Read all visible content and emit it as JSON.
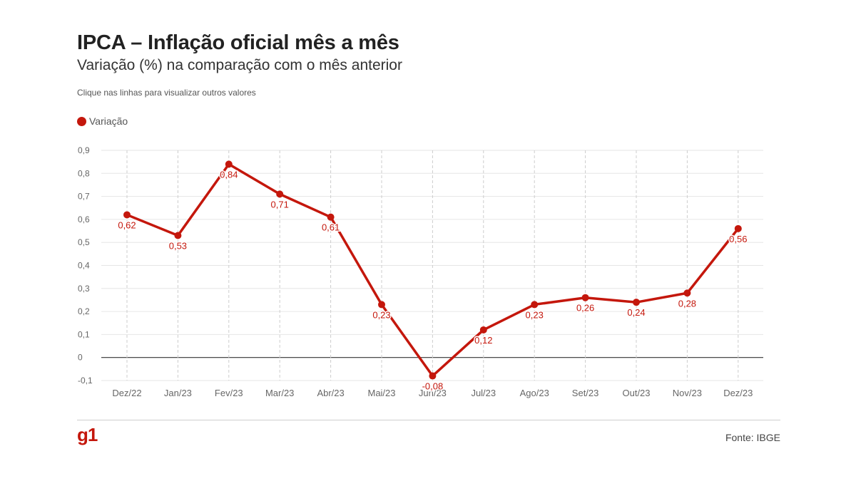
{
  "header": {
    "title": "IPCA – Inflação oficial mês a mês",
    "subtitle": "Variação (%) na comparação com o mês anterior",
    "hint": "Clique nas linhas para visualizar outros valores"
  },
  "footer": {
    "logo": "g1",
    "source": "Fonte: IBGE"
  },
  "colors": {
    "series": "#c4170c",
    "logo": "#c4170c",
    "grid": "#e6e6e6",
    "vgrid": "#cccccc",
    "zero_line": "#333333",
    "tick_text": "#666666"
  },
  "chart_data": {
    "type": "line",
    "title": "IPCA – Inflação oficial mês a mês",
    "subtitle": "Variação (%) na comparação com o mês anterior",
    "categories": [
      "Dez/22",
      "Jan/23",
      "Fev/23",
      "Mar/23",
      "Abr/23",
      "Mai/23",
      "Jun/23",
      "Jul/23",
      "Ago/23",
      "Set/23",
      "Out/23",
      "Nov/23",
      "Dez/23"
    ],
    "series": [
      {
        "name": "Variação",
        "values": [
          0.62,
          0.53,
          0.84,
          0.71,
          0.61,
          0.23,
          -0.08,
          0.12,
          0.23,
          0.26,
          0.24,
          0.28,
          0.56
        ],
        "labels": [
          "0,62",
          "0,53",
          "0,84",
          "0,71",
          "0,61",
          "0,23",
          "-0,08",
          "0,12",
          "0,23",
          "0,26",
          "0,24",
          "0,28",
          "0,56"
        ]
      }
    ],
    "ylim": [
      -0.1,
      0.9
    ],
    "yticks": [
      -0.1,
      0,
      0.1,
      0.2,
      0.3,
      0.4,
      0.5,
      0.6,
      0.7,
      0.8,
      0.9
    ],
    "ytick_labels": [
      "-0,1",
      "0",
      "0,1",
      "0,2",
      "0,3",
      "0,4",
      "0,5",
      "0,6",
      "0,7",
      "0,8",
      "0,9"
    ],
    "grid": true,
    "legend": "top-left"
  }
}
